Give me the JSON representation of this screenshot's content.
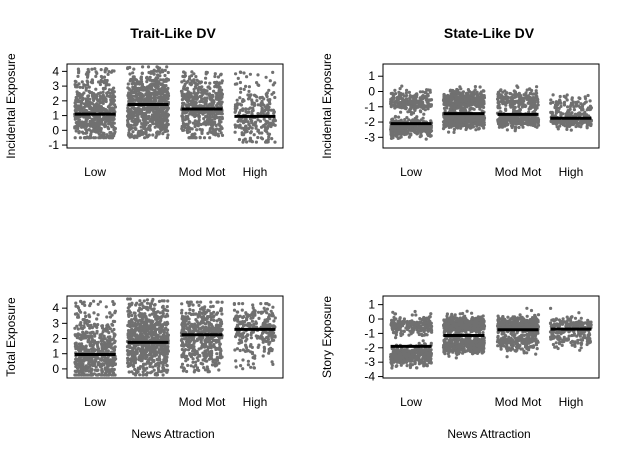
{
  "figure": {
    "col_titles": [
      "Trait-Like DV",
      "State-Like DV"
    ],
    "x_axis_label": "News Attraction"
  },
  "chart_data": [
    {
      "type": "scatter",
      "title": "Trait-Like DV",
      "xlabel": "",
      "ylabel": "Incidental Exposure",
      "categories": [
        "Low",
        "",
        "Mod Mot",
        "High"
      ],
      "yticks": [
        -1,
        0,
        1,
        2,
        3,
        4
      ],
      "ylim": [
        -1.2,
        4.5
      ],
      "means": [
        1.1,
        1.75,
        1.45,
        0.95
      ],
      "spread": [
        [
          -0.5,
          4.2
        ],
        [
          -0.5,
          4.3
        ],
        [
          -0.5,
          4.0
        ],
        [
          -0.8,
          4.0
        ]
      ],
      "counts": [
        560,
        760,
        500,
        260
      ],
      "point_color": "#707070",
      "mean_color": "#000000"
    },
    {
      "type": "scatter",
      "title": "State-Like DV",
      "xlabel": "",
      "ylabel": "Incidental Exposure",
      "categories": [
        "Low",
        "",
        "Mod Mot",
        "High"
      ],
      "yticks": [
        -3,
        -2,
        -1,
        0,
        1
      ],
      "ylim": [
        -3.7,
        1.8
      ],
      "means": [
        -2.1,
        -1.45,
        -1.5,
        -1.75
      ],
      "clusters": [
        [
          {
            "c": -2.4,
            "s": 0.3,
            "w": 0.65
          },
          {
            "c": -0.6,
            "s": 0.35,
            "w": 0.35
          }
        ],
        [
          {
            "c": -1.9,
            "s": 0.25,
            "w": 0.5
          },
          {
            "c": -0.6,
            "s": 0.35,
            "w": 0.5
          }
        ],
        [
          {
            "c": -1.9,
            "s": 0.25,
            "w": 0.55
          },
          {
            "c": -0.6,
            "s": 0.35,
            "w": 0.45
          }
        ],
        [
          {
            "c": -1.9,
            "s": 0.25,
            "w": 0.6
          },
          {
            "c": -0.9,
            "s": 0.35,
            "w": 0.4
          }
        ]
      ],
      "counts": [
        560,
        760,
        500,
        260
      ],
      "point_color": "#707070",
      "mean_color": "#000000"
    },
    {
      "type": "scatter",
      "title": "",
      "xlabel": "News Attraction",
      "ylabel": "Total Exposure",
      "categories": [
        "Low",
        "",
        "Mod Mot",
        "High"
      ],
      "yticks": [
        0,
        1,
        2,
        3,
        4
      ],
      "ylim": [
        -0.6,
        4.8
      ],
      "means": [
        0.95,
        1.75,
        2.25,
        2.6
      ],
      "spread": [
        [
          -0.4,
          4.5
        ],
        [
          -0.4,
          4.6
        ],
        [
          -0.2,
          4.4
        ],
        [
          0.0,
          4.3
        ]
      ],
      "counts": [
        560,
        760,
        500,
        260
      ],
      "point_color": "#707070",
      "mean_color": "#000000"
    },
    {
      "type": "scatter",
      "title": "",
      "xlabel": "News Attraction",
      "ylabel": "Story Exposure",
      "categories": [
        "Low",
        "",
        "Mod Mot",
        "High"
      ],
      "yticks": [
        -4,
        -3,
        -2,
        -1,
        0,
        1
      ],
      "ylim": [
        -4.1,
        1.6
      ],
      "means": [
        -1.9,
        -1.15,
        -0.75,
        -0.7
      ],
      "clusters": [
        [
          {
            "c": -2.5,
            "s": 0.35,
            "w": 0.6
          },
          {
            "c": -0.5,
            "s": 0.35,
            "w": 0.4
          }
        ],
        [
          {
            "c": -1.8,
            "s": 0.3,
            "w": 0.45
          },
          {
            "c": -0.4,
            "s": 0.3,
            "w": 0.55
          }
        ],
        [
          {
            "c": -1.6,
            "s": 0.3,
            "w": 0.4
          },
          {
            "c": -0.4,
            "s": 0.3,
            "w": 0.6
          }
        ],
        [
          {
            "c": -1.4,
            "s": 0.3,
            "w": 0.4
          },
          {
            "c": -0.4,
            "s": 0.3,
            "w": 0.6
          }
        ]
      ],
      "counts": [
        560,
        760,
        500,
        260
      ],
      "point_color": "#707070",
      "mean_color": "#000000"
    }
  ]
}
